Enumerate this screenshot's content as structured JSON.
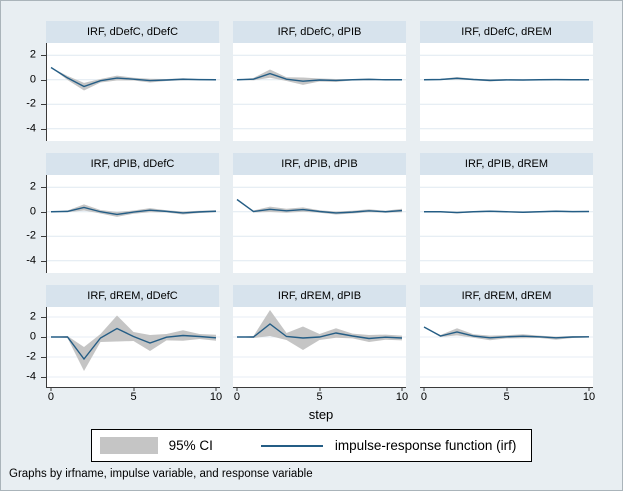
{
  "figure": {
    "colors": {
      "background": "#e8eef2",
      "panel_title_bg": "#d7e3ed",
      "plot_bg": "#ffffff",
      "gridline": "#dfe9f0",
      "axis": "#3a3a3a",
      "ci_band": "#c5c5c5",
      "irf_line": "#245d85"
    },
    "xlabel": "step",
    "x_ticks": [
      "0",
      "5",
      "10"
    ],
    "y_ticks": [
      "2",
      "0",
      "-2",
      "-4"
    ],
    "ytick_values": [
      2,
      0,
      -2,
      -4
    ],
    "legend": {
      "ci_label": "95% CI",
      "irf_label": "impulse-response function (irf)"
    },
    "note": "Graphs by irfname, impulse variable, and response variable"
  },
  "chart_data": [
    {
      "type": "line",
      "title": "IRF, dDefC, dDefC",
      "impulse": "dDefC",
      "response": "dDefC",
      "xlabel": "step",
      "ylim": [
        -5,
        3
      ],
      "xticks": [
        0,
        5,
        10
      ],
      "yticks": [
        2,
        0,
        -2,
        -4
      ],
      "x": [
        0,
        1,
        2,
        3,
        4,
        5,
        6,
        7,
        8,
        9,
        10
      ],
      "irf": [
        1.0,
        0.15,
        -0.55,
        -0.08,
        0.14,
        0.05,
        -0.07,
        -0.02,
        0.04,
        0.01,
        0.0
      ],
      "ci_upper": [
        1.0,
        0.32,
        -0.25,
        0.06,
        0.34,
        0.16,
        0.08,
        0.06,
        0.12,
        0.05,
        0.03
      ],
      "ci_lower": [
        1.0,
        -0.02,
        -0.88,
        -0.22,
        -0.06,
        -0.06,
        -0.22,
        -0.1,
        -0.04,
        -0.03,
        -0.03
      ]
    },
    {
      "type": "line",
      "title": "IRF, dDefC, dPIB",
      "impulse": "dDefC",
      "response": "dPIB",
      "xlabel": "step",
      "ylim": [
        -5,
        3
      ],
      "xticks": [
        0,
        5,
        10
      ],
      "yticks": [
        2,
        0,
        -2,
        -4
      ],
      "x": [
        0,
        1,
        2,
        3,
        4,
        5,
        6,
        7,
        8,
        9,
        10
      ],
      "irf": [
        0.0,
        0.05,
        0.5,
        0.05,
        -0.12,
        -0.02,
        -0.06,
        0.0,
        0.03,
        0.0,
        0.0
      ],
      "ci_upper": [
        0.0,
        0.15,
        0.84,
        0.2,
        0.18,
        0.1,
        0.06,
        0.05,
        0.1,
        0.03,
        0.03
      ],
      "ci_lower": [
        0.0,
        -0.05,
        0.16,
        -0.1,
        -0.42,
        -0.14,
        -0.18,
        -0.05,
        -0.04,
        -0.03,
        -0.03
      ]
    },
    {
      "type": "line",
      "title": "IRF, dDefC, dREM",
      "impulse": "dDefC",
      "response": "dREM",
      "xlabel": "step",
      "ylim": [
        -5,
        3
      ],
      "xticks": [
        0,
        5,
        10
      ],
      "yticks": [
        2,
        0,
        -2,
        -4
      ],
      "x": [
        0,
        1,
        2,
        3,
        4,
        5,
        6,
        7,
        8,
        9,
        10
      ],
      "irf": [
        0.0,
        0.02,
        0.12,
        0.02,
        -0.05,
        -0.01,
        -0.02,
        0.0,
        0.01,
        0.0,
        0.0
      ],
      "ci_upper": [
        0.0,
        0.06,
        0.22,
        0.08,
        0.04,
        0.04,
        0.03,
        0.02,
        0.04,
        0.02,
        0.01
      ],
      "ci_lower": [
        0.0,
        -0.02,
        0.02,
        -0.04,
        -0.14,
        -0.06,
        -0.07,
        -0.02,
        -0.02,
        -0.02,
        -0.01
      ]
    },
    {
      "type": "line",
      "title": "IRF, dPIB, dDefC",
      "impulse": "dPIB",
      "response": "dDefC",
      "xlabel": "step",
      "ylim": [
        -5,
        3
      ],
      "xticks": [
        0,
        5,
        10
      ],
      "yticks": [
        2,
        0,
        -2,
        -4
      ],
      "x": [
        0,
        1,
        2,
        3,
        4,
        5,
        6,
        7,
        8,
        9,
        10
      ],
      "irf": [
        0.0,
        0.03,
        0.35,
        0.0,
        -0.22,
        -0.03,
        0.13,
        0.03,
        -0.1,
        -0.01,
        0.04
      ],
      "ci_upper": [
        0.0,
        0.1,
        0.6,
        0.14,
        -0.02,
        0.1,
        0.3,
        0.12,
        0.02,
        0.08,
        0.12
      ],
      "ci_lower": [
        0.0,
        -0.04,
        0.1,
        -0.14,
        -0.42,
        -0.16,
        -0.04,
        -0.06,
        -0.22,
        -0.1,
        -0.04
      ]
    },
    {
      "type": "line",
      "title": "IRF, dPIB, dPIB",
      "impulse": "dPIB",
      "response": "dPIB",
      "xlabel": "step",
      "ylim": [
        -5,
        3
      ],
      "xticks": [
        0,
        5,
        10
      ],
      "yticks": [
        2,
        0,
        -2,
        -4
      ],
      "x": [
        0,
        1,
        2,
        3,
        4,
        5,
        6,
        7,
        8,
        9,
        10
      ],
      "irf": [
        1.0,
        0.02,
        0.2,
        0.08,
        0.18,
        0.02,
        -0.1,
        -0.03,
        0.08,
        0.0,
        0.1
      ],
      "ci_upper": [
        1.0,
        0.1,
        0.42,
        0.24,
        0.36,
        0.12,
        0.02,
        0.08,
        0.2,
        0.08,
        0.24
      ],
      "ci_lower": [
        1.0,
        -0.06,
        -0.02,
        -0.08,
        0.0,
        -0.08,
        -0.22,
        -0.14,
        -0.04,
        -0.08,
        -0.04
      ]
    },
    {
      "type": "line",
      "title": "IRF, dPIB, dREM",
      "impulse": "dPIB",
      "response": "dREM",
      "xlabel": "step",
      "ylim": [
        -5,
        3
      ],
      "xticks": [
        0,
        5,
        10
      ],
      "yticks": [
        2,
        0,
        -2,
        -4
      ],
      "x": [
        0,
        1,
        2,
        3,
        4,
        5,
        6,
        7,
        8,
        9,
        10
      ],
      "irf": [
        0.0,
        0.0,
        -0.07,
        0.0,
        0.04,
        0.0,
        -0.04,
        0.0,
        0.04,
        0.01,
        0.02
      ],
      "ci_upper": [
        0.0,
        0.03,
        0.0,
        0.05,
        0.1,
        0.05,
        0.01,
        0.04,
        0.1,
        0.05,
        0.06
      ],
      "ci_lower": [
        0.0,
        -0.04,
        -0.14,
        -0.05,
        -0.02,
        -0.05,
        -0.09,
        -0.04,
        -0.02,
        -0.03,
        -0.02
      ]
    },
    {
      "type": "line",
      "title": "IRF, dREM, dDefC",
      "impulse": "dREM",
      "response": "dDefC",
      "xlabel": "step",
      "ylim": [
        -5,
        3
      ],
      "xticks": [
        0,
        5,
        10
      ],
      "yticks": [
        2,
        0,
        -2,
        -4
      ],
      "x": [
        0,
        1,
        2,
        3,
        4,
        5,
        6,
        7,
        8,
        9,
        10
      ],
      "irf": [
        0.0,
        0.0,
        -2.2,
        -0.1,
        0.85,
        0.05,
        -0.6,
        -0.02,
        0.15,
        0.05,
        -0.08
      ],
      "ci_upper": [
        0.0,
        0.1,
        -1.0,
        0.3,
        2.15,
        0.5,
        0.2,
        0.3,
        0.68,
        0.3,
        0.22
      ],
      "ci_lower": [
        0.0,
        -0.1,
        -3.4,
        -0.5,
        -0.45,
        -0.4,
        -1.4,
        -0.34,
        -0.38,
        -0.2,
        -0.38
      ]
    },
    {
      "type": "line",
      "title": "IRF, dREM, dPIB",
      "impulse": "dREM",
      "response": "dPIB",
      "xlabel": "step",
      "ylim": [
        -5,
        3
      ],
      "xticks": [
        0,
        5,
        10
      ],
      "yticks": [
        2,
        0,
        -2,
        -4
      ],
      "x": [
        0,
        1,
        2,
        3,
        4,
        5,
        6,
        7,
        8,
        9,
        10
      ],
      "irf": [
        0.0,
        0.0,
        1.3,
        0.05,
        -0.1,
        0.0,
        0.4,
        0.1,
        -0.15,
        -0.02,
        -0.1
      ],
      "ci_upper": [
        0.0,
        0.1,
        2.7,
        0.4,
        1.05,
        0.3,
        0.88,
        0.34,
        0.2,
        0.24,
        0.14
      ],
      "ci_lower": [
        0.0,
        -0.1,
        0.1,
        -0.3,
        -1.3,
        -0.3,
        -0.08,
        -0.14,
        -0.5,
        -0.28,
        -0.34
      ]
    },
    {
      "type": "line",
      "title": "IRF, dREM, dREM",
      "impulse": "dREM",
      "response": "dREM",
      "xlabel": "step",
      "ylim": [
        -5,
        3
      ],
      "xticks": [
        0,
        5,
        10
      ],
      "yticks": [
        2,
        0,
        -2,
        -4
      ],
      "x": [
        0,
        1,
        2,
        3,
        4,
        5,
        6,
        7,
        8,
        9,
        10
      ],
      "irf": [
        1.0,
        0.1,
        0.5,
        0.1,
        -0.08,
        0.02,
        0.08,
        0.02,
        -0.08,
        0.0,
        0.02
      ],
      "ci_upper": [
        1.0,
        0.2,
        0.88,
        0.28,
        0.14,
        0.18,
        0.28,
        0.14,
        0.04,
        0.1,
        0.1
      ],
      "ci_lower": [
        1.0,
        0.0,
        0.16,
        -0.08,
        -0.32,
        -0.14,
        -0.12,
        -0.1,
        -0.28,
        -0.1,
        -0.06
      ]
    }
  ]
}
